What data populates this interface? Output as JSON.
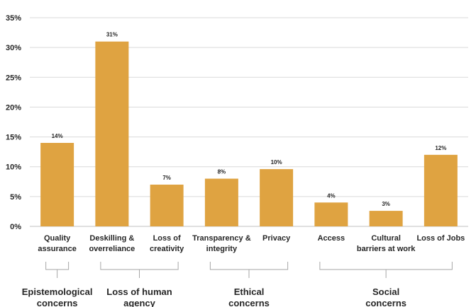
{
  "chart_data": {
    "type": "bar",
    "categories": [
      [
        "Quality",
        "assurance"
      ],
      [
        "Deskilling &",
        "overreliance"
      ],
      [
        "Loss of",
        "creativity"
      ],
      [
        "Transparency &",
        "integrity"
      ],
      [
        "Privacy"
      ],
      [
        "Access"
      ],
      [
        "Cultural",
        "barriers at work"
      ],
      [
        "Loss of Jobs"
      ]
    ],
    "values": [
      14,
      31,
      7,
      8,
      9.6,
      4,
      2.6,
      12
    ],
    "data_labels": [
      "14%",
      "31%",
      "7%",
      "8%",
      "10%",
      "4%",
      "3%",
      "12%"
    ],
    "y_ticks": [
      "0%",
      "5%",
      "10%",
      "15%",
      "20%",
      "25%",
      "30%",
      "35%"
    ],
    "ylim": [
      0,
      35
    ],
    "y_step": 5,
    "grid": true,
    "bar_color": "#dfa341",
    "groups": [
      {
        "label": [
          "Epistemological",
          "concerns"
        ],
        "start": 0,
        "end": 0
      },
      {
        "label": [
          "Loss of human",
          "agency"
        ],
        "start": 1,
        "end": 2
      },
      {
        "label": [
          "Ethical",
          "concerns"
        ],
        "start": 3,
        "end": 4
      },
      {
        "label": [
          "Social",
          "concerns"
        ],
        "start": 5,
        "end": 7
      }
    ]
  }
}
